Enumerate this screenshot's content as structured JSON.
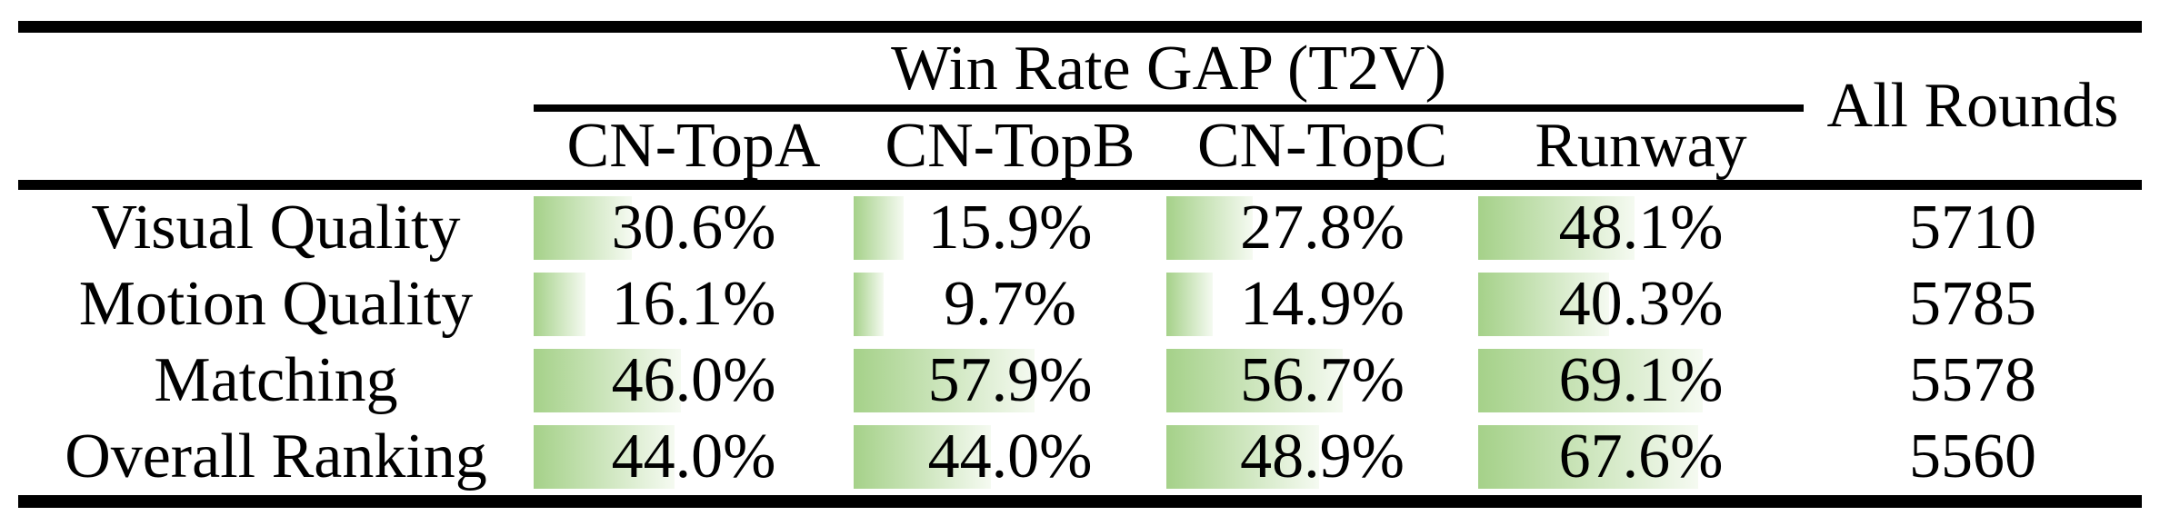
{
  "table": {
    "group_header": "Win Rate GAP (T2V)",
    "all_rounds_header": "All Rounds",
    "columns": [
      "CN-TopA",
      "CN-TopB",
      "CN-TopC",
      "Runway"
    ],
    "rows": [
      {
        "label": "Visual Quality",
        "values": [
          30.6,
          15.9,
          27.8,
          48.1
        ],
        "display": [
          "30.6%",
          "15.9%",
          "27.8%",
          "48.1%"
        ],
        "rounds": "5710"
      },
      {
        "label": "Motion Quality",
        "values": [
          16.1,
          9.7,
          14.9,
          40.3
        ],
        "display": [
          "16.1%",
          "9.7%",
          "14.9%",
          "40.3%"
        ],
        "rounds": "5785"
      },
      {
        "label": "Matching",
        "values": [
          46.0,
          57.9,
          56.7,
          69.1
        ],
        "display": [
          "46.0%",
          "57.9%",
          "56.7%",
          "69.1%"
        ],
        "rounds": "5578"
      },
      {
        "label": "Overall Ranking",
        "values": [
          44.0,
          44.0,
          48.9,
          67.6
        ],
        "display": [
          "44.0%",
          "44.0%",
          "48.9%",
          "67.6%"
        ],
        "rounds": "5560"
      }
    ]
  },
  "colors": {
    "bar_gradient_start": "#a5d189",
    "bar_gradient_end": "#f5faf1",
    "rule_color": "#000000",
    "text_color": "#000000",
    "background": "#ffffff"
  },
  "chart_data": {
    "type": "bar",
    "title": "Win Rate GAP (T2V)",
    "categories": [
      "Visual Quality",
      "Motion Quality",
      "Matching",
      "Overall Ranking"
    ],
    "series": [
      {
        "name": "CN-TopA",
        "values": [
          30.6,
          16.1,
          46.0,
          44.0
        ]
      },
      {
        "name": "CN-TopB",
        "values": [
          15.9,
          9.7,
          57.9,
          44.0
        ]
      },
      {
        "name": "CN-TopC",
        "values": [
          27.8,
          14.9,
          56.7,
          48.9
        ]
      },
      {
        "name": "Runway",
        "values": [
          48.1,
          40.3,
          69.1,
          67.6
        ]
      }
    ],
    "extra_column": {
      "name": "All Rounds",
      "values": [
        5710,
        5785,
        5578,
        5560
      ]
    },
    "unit": "%",
    "value_range": [
      0,
      100
    ],
    "bars_inline_in_table": true
  }
}
